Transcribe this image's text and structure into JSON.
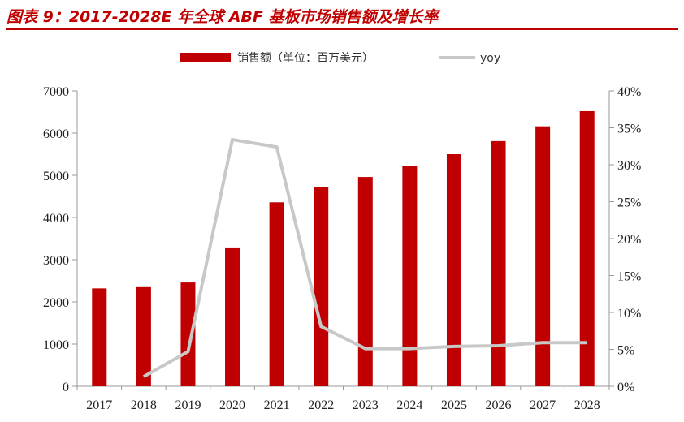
{
  "title": "图表 9：2017-2028E 年全球 ABF 基板市场销售额及增长率",
  "colors": {
    "bar": "#c00000",
    "line": "#c8c8c8",
    "title": "#c00000"
  },
  "chart_data": {
    "type": "bar",
    "categories": [
      "2017",
      "2018",
      "2019",
      "2020",
      "2021",
      "2022",
      "2023",
      "2024",
      "2025",
      "2026",
      "2027",
      "2028"
    ],
    "series": [
      {
        "name": "销售额（单位：百万美元）",
        "type": "bar",
        "axis": "left",
        "values": [
          2320,
          2350,
          2460,
          3290,
          4360,
          4720,
          4960,
          5220,
          5500,
          5810,
          6160,
          6520
        ]
      },
      {
        "name": "yoy",
        "type": "line",
        "axis": "right",
        "values": [
          null,
          1.3,
          4.7,
          33.4,
          32.4,
          8.1,
          5.1,
          5.1,
          5.4,
          5.5,
          5.9,
          5.9
        ]
      }
    ],
    "y_left": {
      "ylim": [
        0,
        7000
      ],
      "ticks": [
        "0",
        "1000",
        "2000",
        "3000",
        "4000",
        "5000",
        "6000",
        "7000"
      ]
    },
    "y_right": {
      "ylim": [
        0,
        40
      ],
      "ticks": [
        "0%",
        "5%",
        "10%",
        "15%",
        "20%",
        "25%",
        "30%",
        "35%",
        "40%"
      ]
    },
    "legend": "top-center",
    "grid": false
  }
}
